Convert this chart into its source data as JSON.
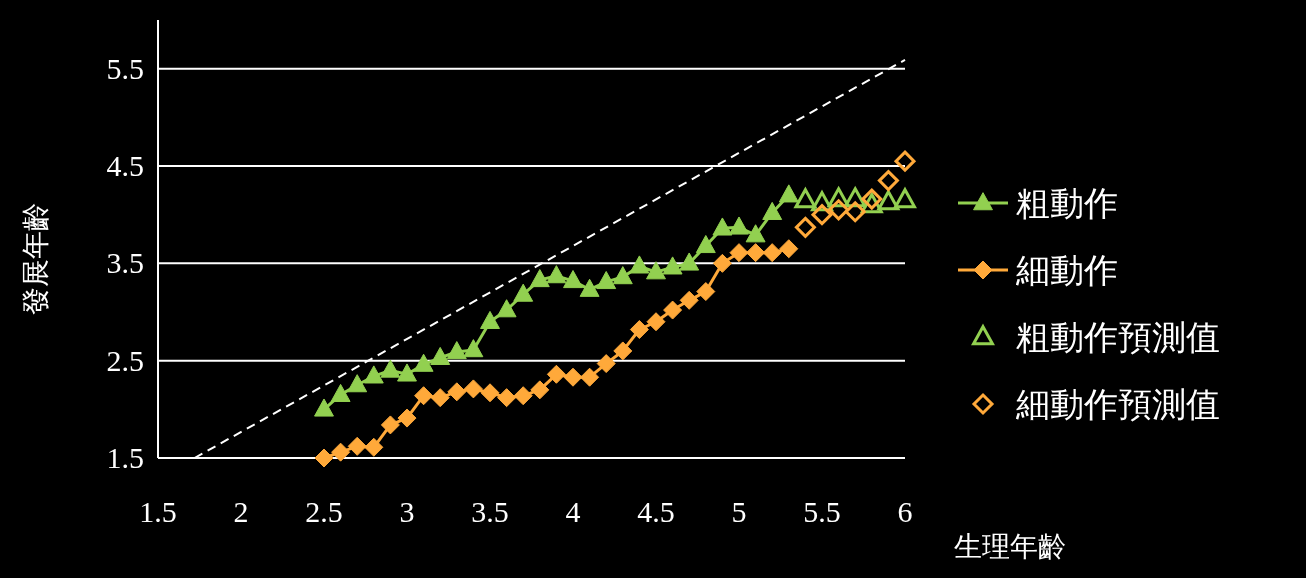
{
  "chart_data": {
    "type": "line",
    "xlabel": "生理年齡",
    "ylabel": "發展年齡",
    "xlim": [
      1.5,
      6
    ],
    "xticks": [
      1.5,
      2,
      2.5,
      3,
      3.5,
      4,
      4.5,
      5,
      5.5,
      6
    ],
    "ylim": [
      1.5,
      6
    ],
    "yticks": [
      1.5,
      2.5,
      3.5,
      4.5,
      5.5
    ],
    "grid": "y",
    "legend": "right",
    "series": [
      {
        "name": "粗動作",
        "marker": "triangle",
        "color": "#92d050",
        "x": [
          2.5,
          2.6,
          2.7,
          2.8,
          2.9,
          3.0,
          3.1,
          3.2,
          3.3,
          3.4,
          3.5,
          3.6,
          3.7,
          3.8,
          3.9,
          4.0,
          4.1,
          4.2,
          4.3,
          4.4,
          4.5,
          4.6,
          4.7,
          4.8,
          4.9,
          5.0,
          5.1,
          5.2,
          5.3
        ],
        "values": [
          2.0,
          2.15,
          2.25,
          2.34,
          2.4,
          2.36,
          2.46,
          2.53,
          2.59,
          2.61,
          2.9,
          3.02,
          3.18,
          3.33,
          3.37,
          3.32,
          3.23,
          3.31,
          3.36,
          3.47,
          3.41,
          3.46,
          3.5,
          3.68,
          3.86,
          3.87,
          3.79,
          4.02,
          4.2
        ]
      },
      {
        "name": "細動作",
        "marker": "diamond",
        "color": "#ffa93a",
        "x": [
          2.5,
          2.6,
          2.7,
          2.8,
          2.9,
          3.0,
          3.1,
          3.2,
          3.3,
          3.4,
          3.5,
          3.6,
          3.7,
          3.8,
          3.9,
          4.0,
          4.1,
          4.2,
          4.3,
          4.4,
          4.5,
          4.6,
          4.7,
          4.8,
          4.9,
          5.0,
          5.1,
          5.2,
          5.3
        ],
        "values": [
          1.5,
          1.56,
          1.62,
          1.61,
          1.84,
          1.91,
          2.14,
          2.12,
          2.18,
          2.21,
          2.17,
          2.12,
          2.14,
          2.2,
          2.36,
          2.33,
          2.33,
          2.47,
          2.6,
          2.82,
          2.9,
          3.02,
          3.12,
          3.21,
          3.5,
          3.61,
          3.61,
          3.61,
          3.65
        ]
      },
      {
        "name": "粗動作預測值",
        "type": "scatter",
        "marker": "triangle",
        "color": "#92d050",
        "x": [
          5.4,
          5.5,
          5.6,
          5.7,
          5.8,
          5.9,
          6.0
        ],
        "values": [
          4.15,
          4.12,
          4.16,
          4.16,
          4.1,
          4.13,
          4.15
        ]
      },
      {
        "name": "細動作預測值",
        "type": "scatter",
        "marker": "diamond",
        "color": "#ffa93a",
        "x": [
          5.4,
          5.5,
          5.6,
          5.7,
          5.8,
          5.9,
          6.0
        ],
        "values": [
          3.87,
          4.0,
          4.05,
          4.03,
          4.16,
          4.35,
          4.55
        ]
      },
      {
        "marker": "none",
        "line_style": "dashed",
        "color": "#ffffff",
        "x": [
          1.72,
          6.0
        ],
        "values": [
          1.5,
          5.59
        ]
      }
    ]
  }
}
